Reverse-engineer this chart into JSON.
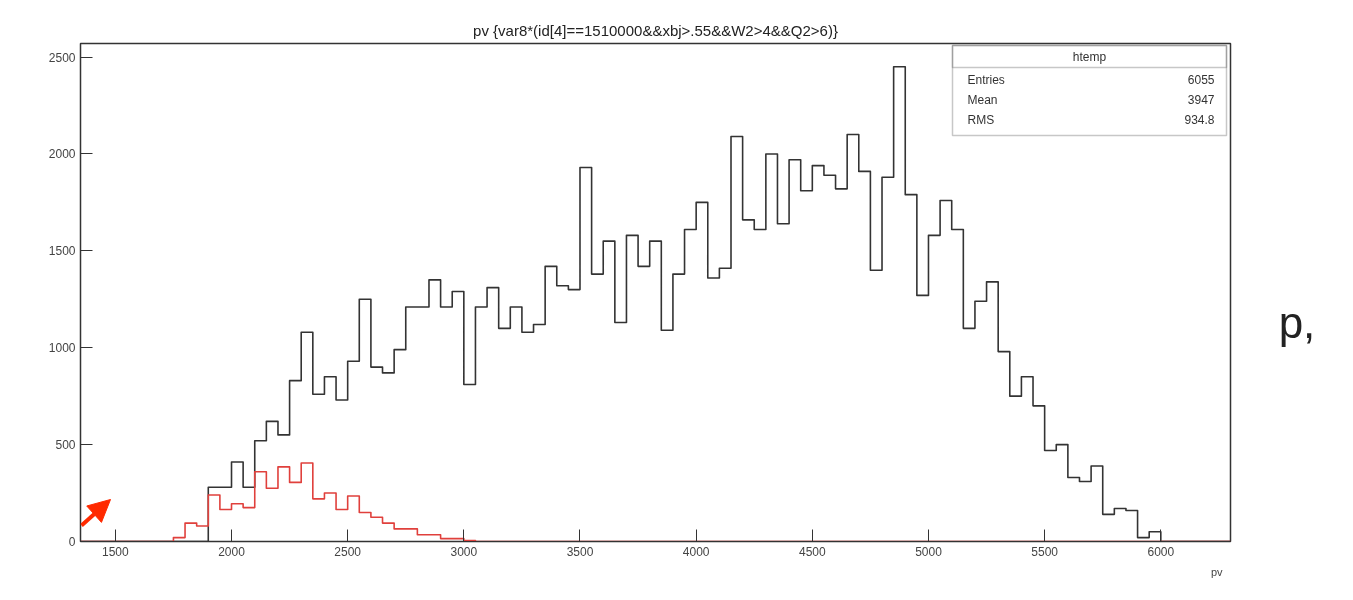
{
  "chart_data": {
    "type": "histogram",
    "title": "pv {var8*(id[4]==1510000&&xbj>.55&&W2>4&&Q2>6)}",
    "xlabel": "pv",
    "bins": [
      1350,
      1400,
      1450,
      1500,
      1550,
      1600,
      1650,
      1700,
      1750,
      1800,
      1850,
      1900,
      1950,
      2000,
      2050,
      2100,
      2150,
      2200,
      2250,
      2300,
      2350,
      2400,
      2450,
      2500,
      2550,
      2600,
      2650,
      2700,
      2750,
      2800,
      2850,
      2900,
      2950,
      3000,
      3050,
      3100,
      3150,
      3200,
      3250,
      3300,
      3350,
      3400,
      3450,
      3500,
      3550,
      3600,
      3650,
      3700,
      3750,
      3800,
      3850,
      3900,
      3950,
      4000,
      4050,
      4100,
      4150,
      4200,
      4250,
      4300,
      4350,
      4400,
      4450,
      4500,
      4550,
      4600,
      4650,
      4700,
      4750,
      4800,
      4850,
      4900,
      4950,
      5000,
      5050,
      5100,
      5150,
      5200,
      5250,
      5300,
      5350,
      5400,
      5450,
      5500,
      5550,
      5600,
      5650,
      5700,
      5750,
      5800,
      5850,
      5900,
      5950,
      6000,
      6050,
      6100,
      6150,
      6200,
      6250,
      6300
    ],
    "series": [
      {
        "color": "#333333",
        "values": [
          0,
          0,
          0,
          0,
          0,
          0,
          0,
          0,
          0,
          0,
          0,
          280,
          280,
          410,
          280,
          520,
          620,
          550,
          830,
          1080,
          760,
          850,
          730,
          930,
          1250,
          900,
          870,
          990,
          1210,
          1210,
          1350,
          1210,
          1290,
          810,
          1210,
          1310,
          1100,
          1210,
          1080,
          1120,
          1420,
          1320,
          1300,
          1930,
          1380,
          1550,
          1130,
          1580,
          1420,
          1550,
          1090,
          1380,
          1610,
          1750,
          1360,
          1410,
          2090,
          1660,
          1610,
          2000,
          1640,
          1970,
          1810,
          1940,
          1890,
          1820,
          2100,
          1910,
          1400,
          1880,
          2450,
          1790,
          1270,
          1580,
          1760,
          1610,
          1100,
          1240,
          1340,
          980,
          750,
          850,
          700,
          470,
          500,
          330,
          310,
          390,
          140,
          170,
          160,
          20,
          50,
          0,
          0,
          0,
          0,
          0,
          0
        ]
      },
      {
        "color": "#e0403c",
        "values": [
          0,
          0,
          0,
          0,
          0,
          0,
          0,
          0,
          20,
          95,
          80,
          240,
          165,
          195,
          175,
          360,
          275,
          385,
          305,
          405,
          220,
          250,
          165,
          235,
          150,
          125,
          95,
          65,
          65,
          35,
          35,
          15,
          15,
          5,
          0,
          0,
          0,
          0,
          0,
          0,
          0,
          0,
          0,
          0,
          0,
          0,
          0,
          0,
          0,
          0,
          0,
          0,
          0,
          0,
          0,
          0,
          0,
          0,
          0,
          0,
          0,
          0,
          0,
          0,
          0,
          0,
          0,
          0,
          0,
          0,
          0,
          0,
          0,
          0,
          0,
          0,
          0,
          0,
          0,
          0,
          0,
          0,
          0,
          0,
          0,
          0,
          0,
          0,
          0,
          0,
          0,
          0,
          0,
          0,
          0,
          0,
          0,
          0,
          0
        ]
      }
    ],
    "xlim": [
      1350,
      6300
    ],
    "xticks": [
      1500,
      2000,
      2500,
      3000,
      3500,
      4000,
      4500,
      5000,
      5500,
      6000
    ],
    "ylim": [
      0,
      2570
    ],
    "yticks": [
      0,
      500,
      1000,
      1500,
      2000,
      2500
    ],
    "grid": false,
    "annotations": [
      "htemp",
      "Entries",
      "6055",
      "Mean",
      "3947",
      "RMS",
      "934.8",
      "p,"
    ]
  }
}
